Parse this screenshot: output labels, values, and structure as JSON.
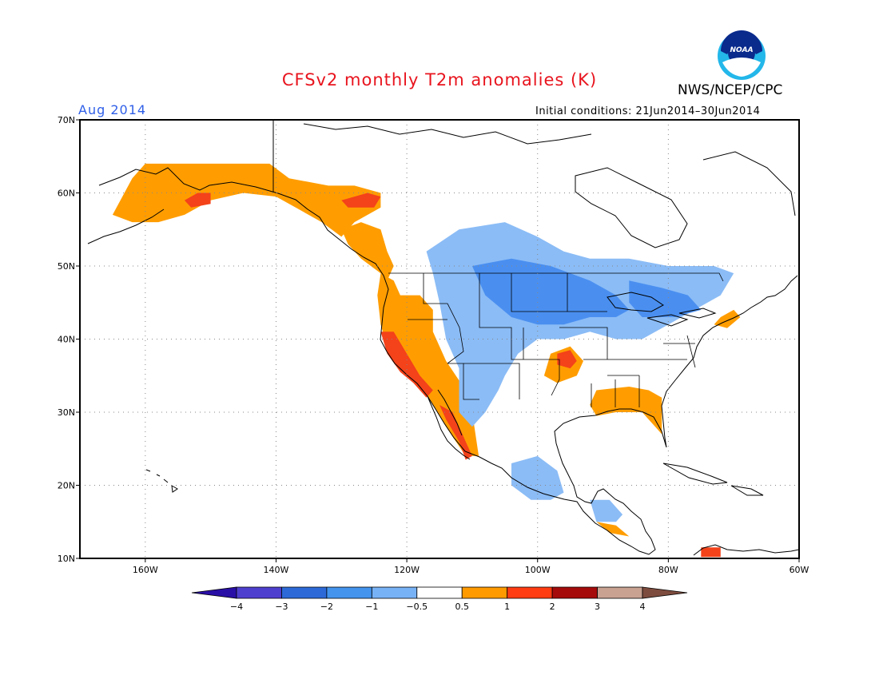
{
  "header": {
    "title": "CFSv2 monthly T2m anomalies (K)",
    "agency": "NWS/NCEP/CPC",
    "logo_text": "NOAA",
    "month": "Aug 2014",
    "initial_conditions": "Initial conditions: 21Jun2014–30Jun2014"
  },
  "map": {
    "projection": "cylindrical",
    "lon_range": [
      -170,
      -60
    ],
    "lat_range": [
      10,
      70
    ],
    "grid": "dotted",
    "lat_ticks": [
      {
        "value": 70,
        "label": "70N"
      },
      {
        "value": 60,
        "label": "60N"
      },
      {
        "value": 50,
        "label": "50N"
      },
      {
        "value": 40,
        "label": "40N"
      },
      {
        "value": 30,
        "label": "30N"
      },
      {
        "value": 20,
        "label": "20N"
      },
      {
        "value": 10,
        "label": "10N"
      }
    ],
    "lon_ticks": [
      {
        "value": -160,
        "label": "160W"
      },
      {
        "value": -140,
        "label": "140W"
      },
      {
        "value": -120,
        "label": "120W"
      },
      {
        "value": -100,
        "label": "100W"
      },
      {
        "value": -80,
        "label": "80W"
      },
      {
        "value": -60,
        "label": "60W"
      }
    ],
    "anomaly_regions": [
      {
        "name": "alaska-warm",
        "level": 1,
        "poly": [
          [
            -165,
            57
          ],
          [
            -162,
            62
          ],
          [
            -160,
            64
          ],
          [
            -150,
            64
          ],
          [
            -141,
            64
          ],
          [
            -138,
            62
          ],
          [
            -132,
            61
          ],
          [
            -128,
            61
          ],
          [
            -124,
            60
          ],
          [
            -124,
            58
          ],
          [
            -128,
            56
          ],
          [
            -130,
            54
          ],
          [
            -133,
            56
          ],
          [
            -137,
            58
          ],
          [
            -140,
            59.5
          ],
          [
            -145,
            60
          ],
          [
            -150,
            59
          ],
          [
            -154,
            57
          ],
          [
            -158,
            56
          ],
          [
            -162,
            56
          ]
        ]
      },
      {
        "name": "alaska-hot-1",
        "level": 2,
        "poly": [
          [
            -154,
            59
          ],
          [
            -152,
            60
          ],
          [
            -150,
            60
          ],
          [
            -150,
            58.5
          ],
          [
            -153,
            58
          ]
        ]
      },
      {
        "name": "alaska-hot-2",
        "level": 2,
        "poly": [
          [
            -130,
            59
          ],
          [
            -126,
            60
          ],
          [
            -124,
            59.5
          ],
          [
            -125,
            58
          ],
          [
            -129,
            58
          ]
        ]
      },
      {
        "name": "bc-warm",
        "level": 1,
        "poly": [
          [
            -130,
            55
          ],
          [
            -127,
            56
          ],
          [
            -124,
            55
          ],
          [
            -123,
            52
          ],
          [
            -122,
            50
          ],
          [
            -123,
            48
          ],
          [
            -124,
            49
          ],
          [
            -127,
            51
          ],
          [
            -129,
            53
          ]
        ]
      },
      {
        "name": "westcoast-warm",
        "level": 1,
        "poly": [
          [
            -124,
            49
          ],
          [
            -122,
            48
          ],
          [
            -121,
            46
          ],
          [
            -118,
            46
          ],
          [
            -116,
            44
          ],
          [
            -116,
            41
          ],
          [
            -114,
            37
          ],
          [
            -111,
            33
          ],
          [
            -110,
            30
          ],
          [
            -109,
            24
          ],
          [
            -111,
            24
          ],
          [
            -114,
            28
          ],
          [
            -116,
            31
          ],
          [
            -118,
            34
          ],
          [
            -121,
            36
          ],
          [
            -123,
            39
          ],
          [
            -124,
            42
          ],
          [
            -124.5,
            46
          ]
        ]
      },
      {
        "name": "california-hot",
        "level": 2,
        "poly": [
          [
            -124,
            41
          ],
          [
            -122,
            41
          ],
          [
            -120,
            38
          ],
          [
            -118,
            35
          ],
          [
            -116,
            33
          ],
          [
            -117,
            32
          ],
          [
            -119,
            34
          ],
          [
            -121,
            35.5
          ],
          [
            -123,
            38
          ]
        ]
      },
      {
        "name": "baja-hot",
        "level": 2,
        "poly": [
          [
            -115,
            31
          ],
          [
            -113,
            30
          ],
          [
            -111,
            26
          ],
          [
            -110,
            24
          ],
          [
            -111,
            23.5
          ],
          [
            -112,
            26
          ],
          [
            -114,
            29
          ]
        ]
      },
      {
        "name": "northcentral-cool",
        "level": -1,
        "poly": [
          [
            -117,
            52
          ],
          [
            -112,
            55
          ],
          [
            -105,
            56
          ],
          [
            -100,
            54
          ],
          [
            -96,
            52
          ],
          [
            -92,
            51
          ],
          [
            -86,
            51
          ],
          [
            -80,
            50
          ],
          [
            -73,
            50
          ],
          [
            -70,
            49
          ],
          [
            -72,
            46
          ],
          [
            -76,
            44
          ],
          [
            -80,
            42
          ],
          [
            -84,
            40
          ],
          [
            -88,
            40
          ],
          [
            -92,
            41
          ],
          [
            -96,
            40
          ],
          [
            -100,
            40
          ],
          [
            -103,
            38
          ],
          [
            -105,
            35
          ],
          [
            -106,
            33
          ],
          [
            -108,
            30
          ],
          [
            -110,
            28
          ],
          [
            -112,
            30
          ],
          [
            -112,
            36
          ],
          [
            -114,
            40
          ],
          [
            -115,
            45
          ],
          [
            -116,
            49
          ]
        ]
      },
      {
        "name": "northplains-cool",
        "level": -2,
        "poly": [
          [
            -110,
            50
          ],
          [
            -104,
            51
          ],
          [
            -98,
            50
          ],
          [
            -92,
            48
          ],
          [
            -88,
            46
          ],
          [
            -86,
            44
          ],
          [
            -88,
            43
          ],
          [
            -92,
            43
          ],
          [
            -96,
            42
          ],
          [
            -100,
            42
          ],
          [
            -104,
            43
          ],
          [
            -108,
            46
          ]
        ]
      },
      {
        "name": "greatlakes-cool",
        "level": -2,
        "poly": [
          [
            -86,
            48
          ],
          [
            -81,
            47
          ],
          [
            -77,
            46
          ],
          [
            -75,
            44
          ],
          [
            -79,
            43
          ],
          [
            -84,
            43
          ],
          [
            -86,
            45
          ]
        ]
      },
      {
        "name": "mexico-cool",
        "level": -1,
        "poly": [
          [
            -104,
            23
          ],
          [
            -100,
            24
          ],
          [
            -97,
            22
          ],
          [
            -96,
            19
          ],
          [
            -98,
            18
          ],
          [
            -101,
            18
          ],
          [
            -104,
            20
          ]
        ]
      },
      {
        "name": "centralamerica-cool",
        "level": -1,
        "poly": [
          [
            -92,
            18
          ],
          [
            -89,
            18
          ],
          [
            -87,
            16
          ],
          [
            -88,
            15
          ],
          [
            -91,
            15
          ]
        ]
      },
      {
        "name": "southernplains-warm",
        "level": 1,
        "poly": [
          [
            -98,
            38
          ],
          [
            -95,
            39
          ],
          [
            -93,
            37
          ],
          [
            -94,
            35
          ],
          [
            -97,
            34
          ],
          [
            -99,
            35
          ]
        ]
      },
      {
        "name": "southernplains-hot",
        "level": 2,
        "poly": [
          [
            -97,
            38
          ],
          [
            -95,
            38.5
          ],
          [
            -94,
            37
          ],
          [
            -95,
            36
          ],
          [
            -97,
            36.5
          ]
        ]
      },
      {
        "name": "gulfcoast-warm",
        "level": 1,
        "poly": [
          [
            -91,
            33
          ],
          [
            -86,
            33.5
          ],
          [
            -83,
            33
          ],
          [
            -81,
            32
          ],
          [
            -81,
            27
          ],
          [
            -82,
            28
          ],
          [
            -84,
            30
          ],
          [
            -88,
            30
          ],
          [
            -91,
            29.5
          ],
          [
            -92,
            31
          ]
        ]
      },
      {
        "name": "newengland-warm",
        "level": 1,
        "poly": [
          [
            -72,
            43
          ],
          [
            -70,
            44
          ],
          [
            -69,
            43
          ],
          [
            -71,
            41.5
          ],
          [
            -73,
            42
          ]
        ]
      },
      {
        "name": "centralamerica-warm",
        "level": 1,
        "poly": [
          [
            -91,
            15
          ],
          [
            -88,
            14.5
          ],
          [
            -86,
            13
          ],
          [
            -89,
            13.5
          ]
        ]
      },
      {
        "name": "colombia-hot",
        "level": 2,
        "poly": [
          [
            -75,
            11.5
          ],
          [
            -72,
            11.5
          ],
          [
            -72,
            10.2
          ],
          [
            -75,
            10.2
          ]
        ]
      }
    ]
  },
  "colorbar": {
    "colors": [
      "#2a0fa6",
      "#4f3fce",
      "#2d6ad8",
      "#4494ee",
      "#78b2f6",
      "#ffffff",
      "#ff9a00",
      "#ff3c12",
      "#a50b0b",
      "#c9a292",
      "#7d4c3e"
    ],
    "labels": [
      "−4",
      "−3",
      "−2",
      "−1",
      "−0.5",
      "0.5",
      "1",
      "2",
      "3",
      "4"
    ]
  },
  "level_colors": {
    "-2": "#4a8ff0",
    "-1": "#8bbcf6",
    "1": "#ff9d00",
    "2": "#f4421a"
  }
}
